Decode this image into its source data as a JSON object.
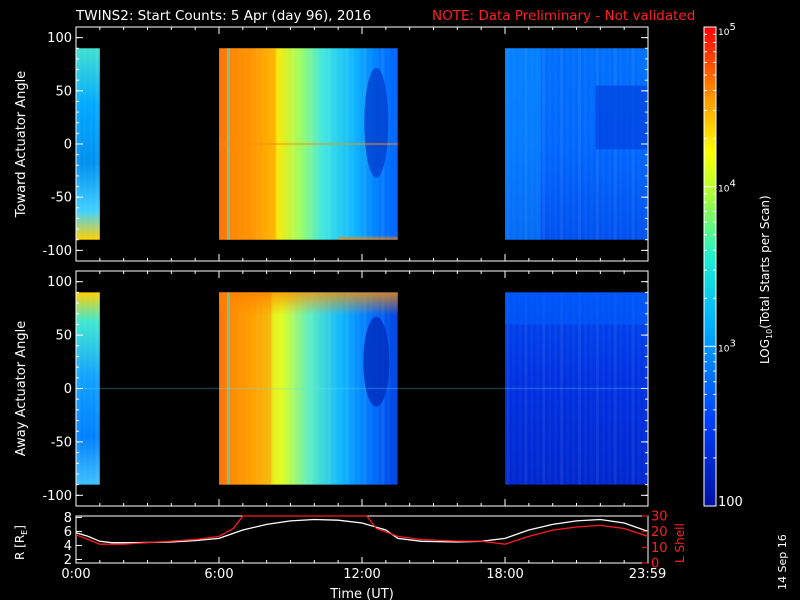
{
  "header": {
    "title": "TWINS2: Start Counts:  5 Apr (day  96), 2016",
    "note": "NOTE: Data Preliminary - Not validated"
  },
  "stamp": "14 Sep 16",
  "colors": {
    "background": "#000000",
    "axis": "#ffffff",
    "note": "#ff2020",
    "lshell": "#ff1a1a",
    "radius": "#ffffff"
  },
  "chart_data": [
    {
      "type": "heatmap",
      "id": "toward",
      "ylabel": "Toward Actuator Angle",
      "xlim": [
        0,
        24
      ],
      "ylim": [
        -110,
        110
      ],
      "yticks": [
        -100,
        -50,
        0,
        50,
        100
      ],
      "data_gaps_hours": [
        [
          1.0,
          6.0
        ],
        [
          13.5,
          18.0
        ]
      ],
      "data_intervals_hours": [
        [
          0,
          1.0
        ],
        [
          6.0,
          13.5
        ],
        [
          18.0,
          24.0
        ]
      ],
      "angle_range": [
        -90,
        90
      ],
      "description_levels": [
        {
          "x_range": [
            0,
            1.0
          ],
          "log10_level": 3.2
        },
        {
          "x_range": [
            6.0,
            8.6
          ],
          "log10_level": 4.4
        },
        {
          "x_range": [
            8.6,
            13.5
          ],
          "log10_level": 3.4
        },
        {
          "x_range": [
            18.0,
            24.0
          ],
          "log10_level": 2.6
        }
      ]
    },
    {
      "type": "heatmap",
      "id": "away",
      "ylabel": "Away Actuator Angle",
      "xlim": [
        0,
        24
      ],
      "ylim": [
        -110,
        110
      ],
      "yticks": [
        -100,
        -50,
        0,
        50,
        100
      ],
      "data_gaps_hours": [
        [
          1.0,
          6.0
        ],
        [
          13.5,
          18.0
        ]
      ],
      "data_intervals_hours": [
        [
          0,
          1.0
        ],
        [
          6.0,
          13.5
        ],
        [
          18.0,
          24.0
        ]
      ],
      "angle_range": [
        -90,
        90
      ]
    },
    {
      "type": "line",
      "id": "orbit",
      "ylabel": "R [R",
      "ylabel_sub": "E",
      "ylabel_end": "]",
      "y2label": "L Shell",
      "xlabel": "Time (UT)",
      "xlim": [
        0,
        24
      ],
      "xtick_labels": [
        "0:00",
        "6:00",
        "12:00",
        "18:00",
        "23:59"
      ],
      "xtick_hours": [
        0,
        6,
        12,
        18,
        23.98
      ],
      "ylim": [
        1.5,
        8.2
      ],
      "yticks": [
        2,
        4,
        6,
        8
      ],
      "y2lim": [
        0,
        30
      ],
      "y2ticks": [
        0,
        10,
        20,
        30
      ],
      "series": [
        {
          "axis": "left",
          "x": [
            0,
            0.5,
            1.0,
            1.5,
            2.5,
            4.0,
            5.0,
            6.0,
            7.0,
            8.0,
            9.0,
            10.0,
            11.0,
            12.0,
            13.0,
            13.5,
            14.5,
            16.0,
            17.0,
            18.0,
            19.0,
            20.0,
            21.0,
            22.0,
            23.0,
            24.0
          ],
          "values": [
            5.8,
            5.3,
            4.6,
            4.4,
            4.4,
            4.5,
            4.7,
            5.0,
            6.2,
            7.0,
            7.5,
            7.7,
            7.6,
            7.2,
            6.2,
            5.0,
            4.6,
            4.5,
            4.6,
            5.0,
            6.2,
            7.0,
            7.5,
            7.7,
            7.2,
            6.0
          ]
        },
        {
          "axis": "right",
          "x": [
            0,
            0.5,
            1.0,
            2.0,
            3.0,
            4.0,
            5.0,
            6.0,
            6.6,
            7.0,
            12.2,
            12.6,
            13.5,
            14.5,
            16.0,
            17.0,
            18.0,
            19.0,
            20.0,
            21.0,
            22.0,
            23.0,
            24.0
          ],
          "values": [
            18,
            15,
            12,
            12,
            13,
            14,
            15,
            17,
            22,
            30,
            30,
            22,
            17,
            15,
            14,
            14,
            12,
            17,
            21,
            23,
            24,
            22,
            17
          ]
        }
      ]
    },
    {
      "type": "colorbar",
      "id": "colorbar",
      "label": "LOG10(Total Starts per Scan)",
      "label_prefix": "LOG",
      "label_sub": "10",
      "label_suffix": "(Total Starts per Scan)",
      "scale": "log",
      "range": [
        100,
        100000
      ],
      "ticks": [
        {
          "value": 100000,
          "base": "10",
          "exp": "5"
        },
        {
          "value": 10000,
          "base": "10",
          "exp": "4"
        },
        {
          "value": 1000,
          "base": "10",
          "exp": "3"
        },
        {
          "value": 100,
          "base": "100",
          "exp": ""
        }
      ]
    }
  ]
}
